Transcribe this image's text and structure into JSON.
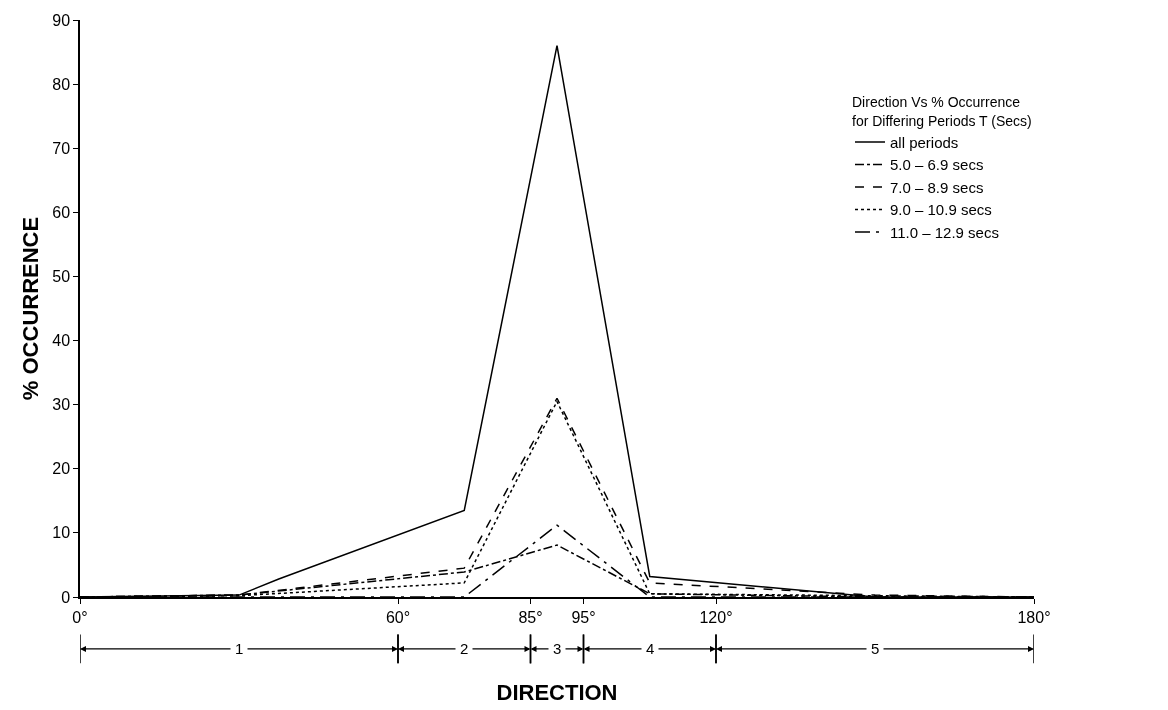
{
  "chart_data": {
    "type": "line",
    "xlabel": "DIRECTION",
    "ylabel": "% OCCURRENCE",
    "legend_title": "Direction Vs % Occurrence\nfor Differing Periods T (Secs)",
    "x": [
      0,
      30,
      72.5,
      90,
      107.5,
      150,
      180
    ],
    "series": [
      {
        "name": "all periods",
        "color": "#000000",
        "line_style": "solid",
        "x": [
          0,
          30,
          37.5,
          72.5,
          90,
          107.5,
          150,
          180
        ],
        "values": [
          0,
          0.3,
          2.8,
          13.5,
          86,
          3.2,
          0,
          0
        ]
      },
      {
        "name": "5.0 – 6.9 secs",
        "color": "#000000",
        "line_style": "dashdot",
        "values": [
          0,
          0.3,
          3.9,
          8.1,
          0.5,
          0,
          0
        ]
      },
      {
        "name": "7.0 – 8.9 secs",
        "color": "#000000",
        "line_style": "dashed",
        "values": [
          0,
          0.3,
          4.5,
          31,
          2.2,
          0.3,
          0
        ]
      },
      {
        "name": "9.0 – 10.9 secs",
        "color": "#000000",
        "line_style": "dotted",
        "values": [
          0,
          0.2,
          2.2,
          30.5,
          0.5,
          0.2,
          0
        ]
      },
      {
        "name": "11.0 – 12.9 secs",
        "color": "#000000",
        "line_style": "longdashdot",
        "values": [
          0,
          0,
          0,
          11.2,
          0,
          0,
          0
        ]
      }
    ],
    "xlim": [
      0,
      180
    ],
    "xticks": [
      {
        "value": 0,
        "label": "0°"
      },
      {
        "value": 60,
        "label": "60°"
      },
      {
        "value": 85,
        "label": "85°"
      },
      {
        "value": 95,
        "label": "95°"
      },
      {
        "value": 120,
        "label": "120°"
      },
      {
        "value": 180,
        "label": "180°"
      }
    ],
    "ylim": [
      0,
      90
    ],
    "yticks": [
      0,
      10,
      20,
      30,
      40,
      50,
      60,
      70,
      80,
      90
    ],
    "annotations": [
      "1",
      "2",
      "3",
      "4",
      "5"
    ],
    "grid": false,
    "legend": "top right",
    "marker": "none"
  }
}
